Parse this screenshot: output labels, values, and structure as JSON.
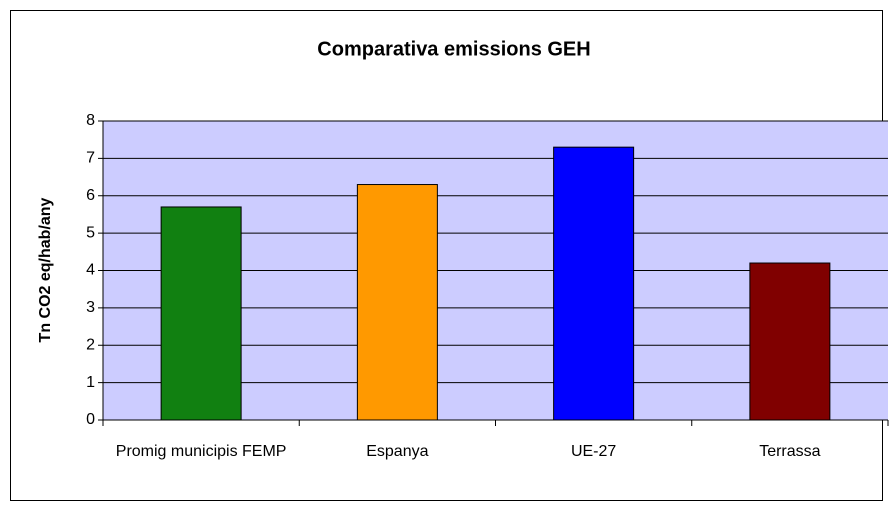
{
  "chart_data": {
    "type": "bar",
    "title": "Comparativa emissions GEH",
    "y_label": "Tn CO2 eq/hab/any",
    "categories": [
      "Promig municipis FEMP",
      "Espanya",
      "UE-27",
      "Terrassa"
    ],
    "values": [
      5.7,
      6.3,
      7.3,
      4.2
    ],
    "colors": [
      "#118011",
      "#ff9900",
      "#0000ff",
      "#800000"
    ],
    "ylim": [
      0,
      8
    ],
    "yticks": [
      0,
      1,
      2,
      3,
      4,
      5,
      6,
      7,
      8
    ],
    "grid": true,
    "plot_background": "#ccccff"
  }
}
